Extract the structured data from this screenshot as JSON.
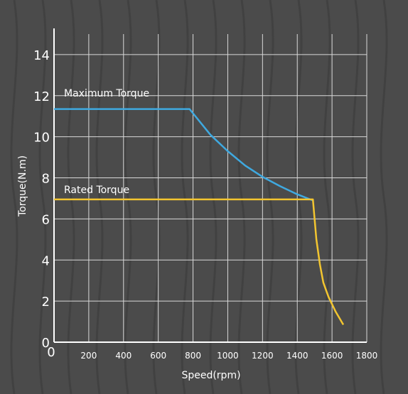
{
  "chart_data": {
    "type": "line",
    "xlabel": "Speed(rpm)",
    "ylabel": "Torque(N.m)",
    "xlim": [
      0,
      1800
    ],
    "ylim": [
      0,
      15
    ],
    "x_ticks": [
      0,
      200,
      400,
      600,
      800,
      1000,
      1200,
      1400,
      1600,
      1800
    ],
    "y_ticks": [
      0,
      2,
      4,
      6,
      8,
      10,
      12,
      14
    ],
    "grid": true,
    "series": [
      {
        "name": "Maximum Torque",
        "color": "#3fa9e0",
        "x": [
          0,
          780,
          900,
          1000,
          1100,
          1200,
          1300,
          1400,
          1490
        ],
        "y": [
          11.35,
          11.35,
          10.1,
          9.3,
          8.6,
          8.05,
          7.6,
          7.2,
          6.9
        ]
      },
      {
        "name": "Rated Torque",
        "color": "#f2c530",
        "x": [
          0,
          1490,
          1510,
          1530,
          1550,
          1580,
          1620,
          1665
        ],
        "y": [
          6.95,
          6.95,
          5.0,
          3.8,
          2.9,
          2.2,
          1.5,
          0.85
        ]
      }
    ]
  }
}
